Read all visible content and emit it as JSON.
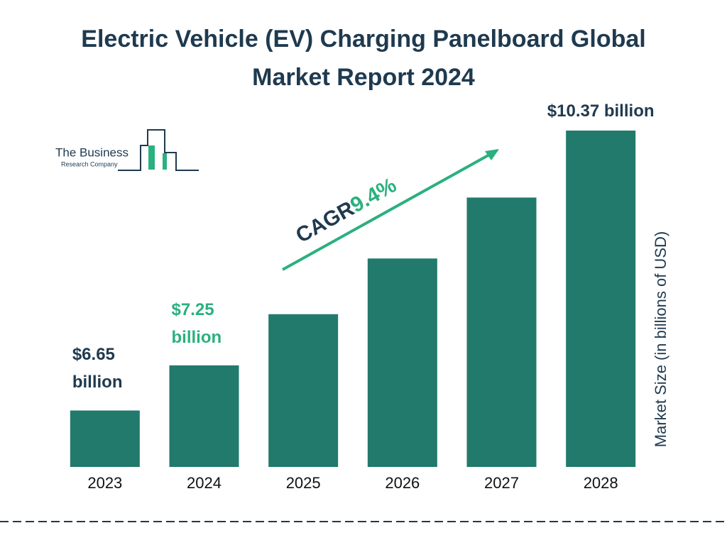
{
  "chart_data": {
    "type": "bar",
    "title": "Electric Vehicle (EV) Charging Panelboard Global Market Report 2024",
    "categories": [
      "2023",
      "2024",
      "2025",
      "2026",
      "2027",
      "2028"
    ],
    "values": [
      6.65,
      7.25,
      7.93,
      8.67,
      9.48,
      10.37
    ],
    "value_labels": [
      "$6.65 billion",
      "$7.25 billion",
      null,
      null,
      null,
      "$10.37 billion"
    ],
    "value_label_colors": [
      "#1f3a4f",
      "#2bb07f",
      null,
      null,
      null,
      "#1f3a4f"
    ],
    "color": "#217a6b",
    "ylim": [
      5.9,
      10.37
    ],
    "y_label": "Market Size (in billions of USD)",
    "annotation": {
      "label": "CAGR",
      "value": "9.4%"
    },
    "logo": {
      "line1": "The Business",
      "line2": "Research Company"
    }
  }
}
